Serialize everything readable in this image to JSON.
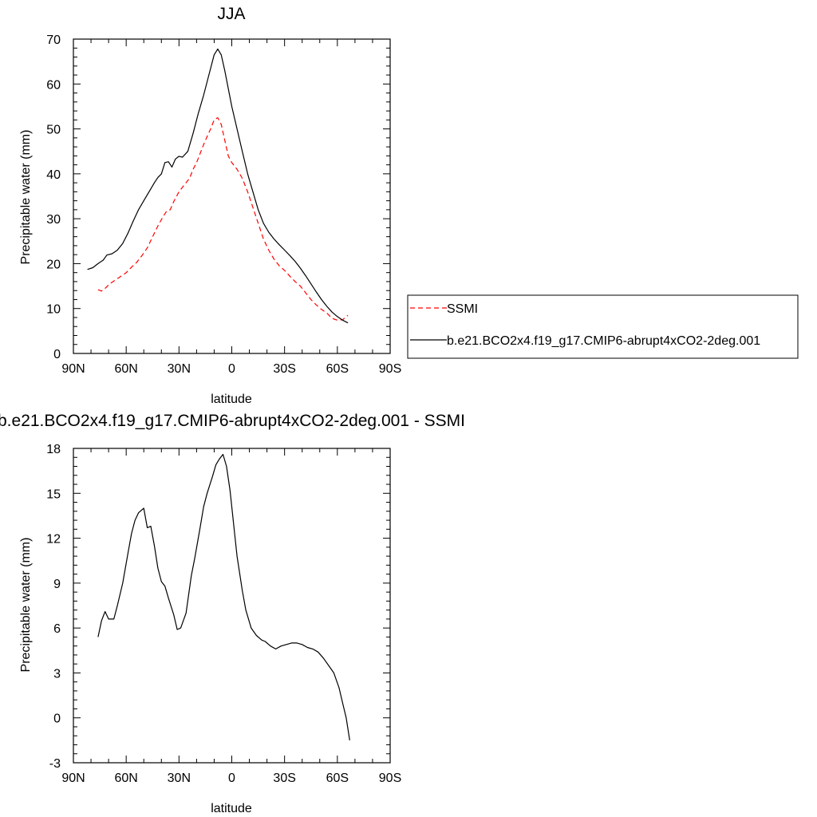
{
  "chart_data": [
    {
      "type": "line",
      "title": "JJA",
      "xlabel": "latitude",
      "ylabel": "Precipitable water (mm)",
      "xlim": [
        90,
        -90
      ],
      "ylim": [
        0,
        70
      ],
      "x_ticks": [
        90,
        60,
        30,
        0,
        -30,
        -60,
        -90
      ],
      "x_tick_labels": [
        "90N",
        "60N",
        "30N",
        "0",
        "30S",
        "60S",
        "90S"
      ],
      "y_ticks": [
        0,
        10,
        20,
        30,
        40,
        50,
        60,
        70
      ],
      "y_tick_labels": [
        "0",
        "10",
        "20",
        "30",
        "40",
        "50",
        "60",
        "70"
      ],
      "legend_position": "right",
      "series": [
        {
          "name": "SSMI",
          "color": "#ff0000",
          "dash": "dashed",
          "points": [
            [
              76,
              14.2
            ],
            [
              74,
              13.9
            ],
            [
              72,
              14.5
            ],
            [
              69,
              15.6
            ],
            [
              66,
              16.4
            ],
            [
              63,
              17.2
            ],
            [
              60,
              18
            ],
            [
              57,
              19.2
            ],
            [
              54,
              20.3
            ],
            [
              51,
              21.8
            ],
            [
              48,
              23.5
            ],
            [
              45,
              26
            ],
            [
              42,
              28.4
            ],
            [
              39,
              30.5
            ],
            [
              37,
              31.7
            ],
            [
              35,
              32
            ],
            [
              33,
              33.8
            ],
            [
              30,
              36
            ],
            [
              27,
              37.5
            ],
            [
              24,
              39
            ],
            [
              22,
              41
            ],
            [
              20,
              42.5
            ],
            [
              18,
              44.5
            ],
            [
              16,
              46.5
            ],
            [
              14,
              48.3
            ],
            [
              12,
              50
            ],
            [
              10,
              52
            ],
            [
              8,
              52.5
            ],
            [
              6,
              51
            ],
            [
              4,
              47.5
            ],
            [
              2,
              44
            ],
            [
              0,
              42.5
            ],
            [
              -3,
              41
            ],
            [
              -6,
              39
            ],
            [
              -9,
              36
            ],
            [
              -12,
              32.5
            ],
            [
              -15,
              29
            ],
            [
              -18,
              25.5
            ],
            [
              -21,
              23
            ],
            [
              -24,
              21
            ],
            [
              -27,
              19.5
            ],
            [
              -30,
              18.5
            ],
            [
              -33,
              17.2
            ],
            [
              -36,
              16
            ],
            [
              -39,
              15
            ],
            [
              -42,
              13.5
            ],
            [
              -45,
              12
            ],
            [
              -48,
              10.8
            ],
            [
              -51,
              9.8
            ],
            [
              -54,
              9
            ],
            [
              -57,
              7.8
            ],
            [
              -60,
              7.4
            ],
            [
              -63,
              7.5
            ],
            [
              -66,
              8.5
            ]
          ]
        },
        {
          "name": "b.e21.BCO2x4.f19_g17.CMIP6-abrupt4xCO2-2deg.001",
          "color": "#000000",
          "dash": "solid",
          "points": [
            [
              82,
              18.7
            ],
            [
              79,
              19.1
            ],
            [
              76,
              20
            ],
            [
              73,
              20.8
            ],
            [
              71,
              21.9
            ],
            [
              68,
              22.2
            ],
            [
              65,
              23
            ],
            [
              62,
              24.5
            ],
            [
              59,
              26.8
            ],
            [
              56,
              29.5
            ],
            [
              53,
              32
            ],
            [
              50,
              34
            ],
            [
              47,
              36
            ],
            [
              44,
              38
            ],
            [
              42,
              39.2
            ],
            [
              40,
              40
            ],
            [
              38,
              42.5
            ],
            [
              36,
              42.7
            ],
            [
              34,
              41.5
            ],
            [
              32,
              43.3
            ],
            [
              30,
              43.9
            ],
            [
              28,
              43.7
            ],
            [
              25,
              45
            ],
            [
              22,
              49
            ],
            [
              19,
              53.5
            ],
            [
              16,
              57.5
            ],
            [
              13,
              62
            ],
            [
              10,
              66.5
            ],
            [
              8,
              67.8
            ],
            [
              6,
              66.5
            ],
            [
              4,
              63
            ],
            [
              2,
              59
            ],
            [
              0,
              55
            ],
            [
              -3,
              50
            ],
            [
              -6,
              45
            ],
            [
              -9,
              40
            ],
            [
              -12,
              36
            ],
            [
              -15,
              32
            ],
            [
              -18,
              29
            ],
            [
              -21,
              27
            ],
            [
              -24,
              25.5
            ],
            [
              -27,
              24.2
            ],
            [
              -30,
              23
            ],
            [
              -33,
              21.8
            ],
            [
              -36,
              20.5
            ],
            [
              -39,
              19
            ],
            [
              -42,
              17.3
            ],
            [
              -45,
              15.5
            ],
            [
              -48,
              13.7
            ],
            [
              -51,
              12
            ],
            [
              -54,
              10.5
            ],
            [
              -57,
              9.2
            ],
            [
              -60,
              8.2
            ],
            [
              -63,
              7.4
            ],
            [
              -66,
              6.8
            ]
          ]
        }
      ]
    },
    {
      "type": "line",
      "title": "b.e21.BCO2x4.f19_g17.CMIP6-abrupt4xCO2-2deg.001 - SSMI",
      "xlabel": "latitude",
      "ylabel": "Precipitable water (mm)",
      "xlim": [
        90,
        -90
      ],
      "ylim": [
        -3,
        18
      ],
      "x_ticks": [
        90,
        60,
        30,
        0,
        -30,
        -60,
        -90
      ],
      "x_tick_labels": [
        "90N",
        "60N",
        "30N",
        "0",
        "30S",
        "60S",
        "90S"
      ],
      "y_ticks": [
        -3,
        0,
        3,
        6,
        9,
        12,
        15,
        18
      ],
      "y_tick_labels": [
        "-3",
        "0",
        "3",
        "6",
        "9",
        "12",
        "15",
        "18"
      ],
      "series": [
        {
          "color": "#000000",
          "dash": "solid",
          "points": [
            [
              76,
              5.4
            ],
            [
              74,
              6.5
            ],
            [
              72,
              7.1
            ],
            [
              70,
              6.6
            ],
            [
              67,
              6.6
            ],
            [
              65,
              7.5
            ],
            [
              62,
              9
            ],
            [
              59,
              11
            ],
            [
              57,
              12.3
            ],
            [
              55,
              13.2
            ],
            [
              53,
              13.7
            ],
            [
              50,
              14
            ],
            [
              48,
              12.7
            ],
            [
              46,
              12.8
            ],
            [
              44,
              11.5
            ],
            [
              42,
              10
            ],
            [
              40,
              9.1
            ],
            [
              38,
              8.8
            ],
            [
              36,
              8
            ],
            [
              33,
              6.9
            ],
            [
              31,
              5.9
            ],
            [
              29,
              6
            ],
            [
              26,
              7
            ],
            [
              23,
              9.5
            ],
            [
              21,
              10.7
            ],
            [
              18,
              12.7
            ],
            [
              16,
              14.1
            ],
            [
              14,
              15
            ],
            [
              11,
              16.1
            ],
            [
              9,
              16.9
            ],
            [
              7,
              17.3
            ],
            [
              5,
              17.6
            ],
            [
              3,
              16.8
            ],
            [
              1,
              15.2
            ],
            [
              -1,
              13
            ],
            [
              -3,
              10.8
            ],
            [
              -6,
              8.5
            ],
            [
              -8,
              7.2
            ],
            [
              -11,
              6
            ],
            [
              -14,
              5.5
            ],
            [
              -17,
              5.2
            ],
            [
              -19,
              5.1
            ],
            [
              -22,
              4.8
            ],
            [
              -25,
              4.6
            ],
            [
              -28,
              4.8
            ],
            [
              -31,
              4.9
            ],
            [
              -34,
              5
            ],
            [
              -37,
              5
            ],
            [
              -40,
              4.9
            ],
            [
              -43,
              4.7
            ],
            [
              -46,
              4.6
            ],
            [
              -49,
              4.4
            ],
            [
              -52,
              4
            ],
            [
              -55,
              3.5
            ],
            [
              -58,
              3
            ],
            [
              -61,
              2
            ],
            [
              -63,
              1
            ],
            [
              -65,
              0
            ],
            [
              -67,
              -1.5
            ]
          ]
        }
      ]
    }
  ]
}
